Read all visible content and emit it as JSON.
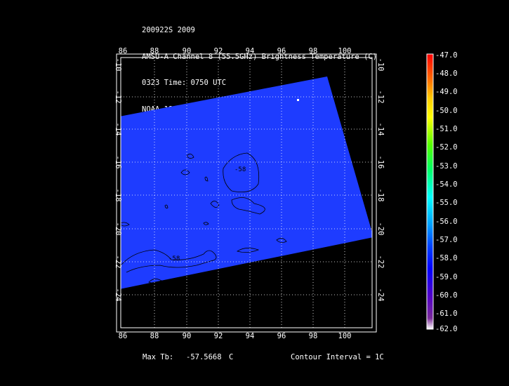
{
  "header": {
    "line1": "200922S 2009",
    "line2": "AMSU-A Channel 8 (55.5GHz) Brightness Temperature (C)",
    "line3": "0323 Time: 0750 UTC",
    "line4": "NOAA-18"
  },
  "map": {
    "lon_ticks": [
      "86",
      "88",
      "90",
      "92",
      "94",
      "96",
      "98",
      "100"
    ],
    "lat_ticks": [
      "-10",
      "-12",
      "-14",
      "-16",
      "-18",
      "-20",
      "-22",
      "-24"
    ],
    "contour_labels": [
      "-58",
      "-58"
    ],
    "swath_color": "#1e3cff",
    "grid": true
  },
  "colorbar": {
    "labels": [
      "-47.0",
      "-48.0",
      "-49.0",
      "-50.0",
      "-51.0",
      "-52.0",
      "-53.0",
      "-54.0",
      "-55.0",
      "-56.0",
      "-57.0",
      "-58.0",
      "-59.0",
      "-60.0",
      "-61.0",
      "-62.0"
    ]
  },
  "footer": {
    "max_tb_label": "Max Tb:",
    "max_tb_value": "-57.5668",
    "max_tb_unit": "C",
    "contour_interval": "Contour Interval = 1C"
  }
}
